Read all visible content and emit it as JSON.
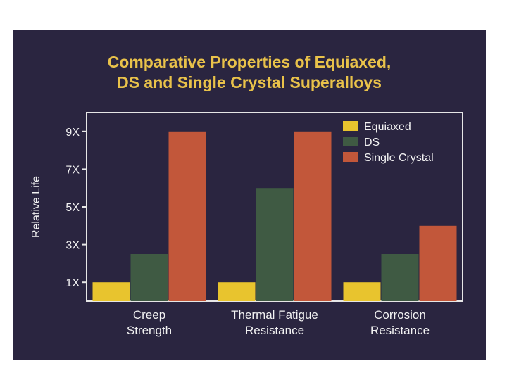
{
  "chart_data": {
    "type": "bar",
    "title_lines": [
      "Comparative Properties of Equiaxed,",
      "DS and Single Crystal Superalloys"
    ],
    "ylabel": "Relative Life",
    "xlabel": "",
    "ylim": [
      0,
      10
    ],
    "yticks": [
      1,
      3,
      5,
      7,
      9
    ],
    "ytick_labels": [
      "1X",
      "3X",
      "5X",
      "7X",
      "9X"
    ],
    "categories": [
      [
        "Creep",
        "Strength"
      ],
      [
        "Thermal Fatigue",
        "Resistance"
      ],
      [
        "Corrosion",
        "Resistance"
      ]
    ],
    "series": [
      {
        "name": "Equiaxed",
        "color": "#e8c42e",
        "values": [
          1,
          1,
          1
        ]
      },
      {
        "name": "DS",
        "color": "#3f5a43",
        "values": [
          2.5,
          6,
          2.5
        ]
      },
      {
        "name": "Single Crystal",
        "color": "#c2573a",
        "values": [
          9,
          9,
          4
        ]
      }
    ],
    "legend_position": "top-right",
    "grid": false,
    "colors": {
      "background": "#2a2540",
      "frame": "#e6e6e6",
      "title": "#e9c24a",
      "text": "#f2f2f2"
    }
  }
}
